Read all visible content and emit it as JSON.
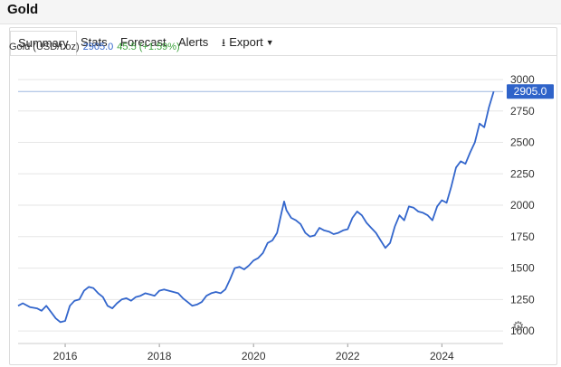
{
  "header": {
    "title": "Gold"
  },
  "tabs": [
    {
      "label": "Summary",
      "active": true
    },
    {
      "label": "Stats"
    },
    {
      "label": "Forecast"
    },
    {
      "label": "Alerts"
    },
    {
      "label": "Export",
      "icon": "download-icon",
      "dropdown": true
    }
  ],
  "legend": {
    "label": "Gold (USD/t.oz)",
    "value": "2905.0",
    "change": "45.5 (+1.59%)"
  },
  "colors": {
    "line": "#3366cc",
    "change_positive": "#3da33d",
    "badge": "#2f63c9"
  },
  "chart_data": {
    "type": "line",
    "title": "",
    "xlabel": "",
    "ylabel": "",
    "x_ticks": [
      "2016",
      "2018",
      "2020",
      "2022",
      "2024"
    ],
    "y_ticks": [
      1000,
      1250,
      1500,
      1750,
      2000,
      2250,
      2500,
      2750,
      3000
    ],
    "xlim": [
      2015.0,
      2025.3
    ],
    "ylim": [
      900,
      3000
    ],
    "grid": true,
    "current_value_label": "2905.0",
    "series": [
      {
        "name": "",
        "x": [
          2015.0,
          2015.1,
          2015.25,
          2015.4,
          2015.5,
          2015.6,
          2015.7,
          2015.8,
          2015.9,
          2016.0,
          2016.1,
          2016.2,
          2016.3,
          2016.4,
          2016.5,
          2016.6,
          2016.7,
          2016.8,
          2016.9,
          2017.0,
          2017.1,
          2017.2,
          2017.3,
          2017.4,
          2017.5,
          2017.6,
          2017.7,
          2017.8,
          2017.9,
          2018.0,
          2018.1,
          2018.2,
          2018.3,
          2018.4,
          2018.5,
          2018.6,
          2018.7,
          2018.8,
          2018.9,
          2019.0,
          2019.1,
          2019.2,
          2019.3,
          2019.4,
          2019.5,
          2019.6,
          2019.7,
          2019.8,
          2019.9,
          2020.0,
          2020.1,
          2020.2,
          2020.3,
          2020.4,
          2020.5,
          2020.6,
          2020.65,
          2020.7,
          2020.8,
          2020.9,
          2021.0,
          2021.1,
          2021.2,
          2021.3,
          2021.4,
          2021.5,
          2021.6,
          2021.7,
          2021.8,
          2021.9,
          2022.0,
          2022.1,
          2022.2,
          2022.3,
          2022.4,
          2022.5,
          2022.6,
          2022.7,
          2022.8,
          2022.9,
          2023.0,
          2023.1,
          2023.2,
          2023.3,
          2023.4,
          2023.5,
          2023.6,
          2023.7,
          2023.8,
          2023.9,
          2024.0,
          2024.1,
          2024.2,
          2024.3,
          2024.4,
          2024.5,
          2024.6,
          2024.7,
          2024.8,
          2024.9,
          2025.0,
          2025.1
        ],
        "values": [
          1200,
          1220,
          1190,
          1180,
          1160,
          1200,
          1150,
          1100,
          1070,
          1080,
          1200,
          1240,
          1250,
          1320,
          1350,
          1340,
          1300,
          1270,
          1200,
          1180,
          1220,
          1250,
          1260,
          1240,
          1270,
          1280,
          1300,
          1290,
          1280,
          1320,
          1330,
          1320,
          1310,
          1300,
          1260,
          1230,
          1200,
          1210,
          1230,
          1280,
          1300,
          1310,
          1300,
          1330,
          1410,
          1500,
          1510,
          1490,
          1520,
          1560,
          1580,
          1620,
          1700,
          1720,
          1780,
          1950,
          2030,
          1960,
          1900,
          1880,
          1850,
          1780,
          1750,
          1760,
          1820,
          1800,
          1790,
          1770,
          1780,
          1800,
          1810,
          1900,
          1950,
          1920,
          1860,
          1820,
          1780,
          1720,
          1660,
          1700,
          1830,
          1920,
          1880,
          1990,
          1980,
          1950,
          1940,
          1920,
          1880,
          1990,
          2040,
          2020,
          2150,
          2300,
          2350,
          2330,
          2420,
          2500,
          2650,
          2620,
          2780,
          2905
        ]
      }
    ]
  }
}
